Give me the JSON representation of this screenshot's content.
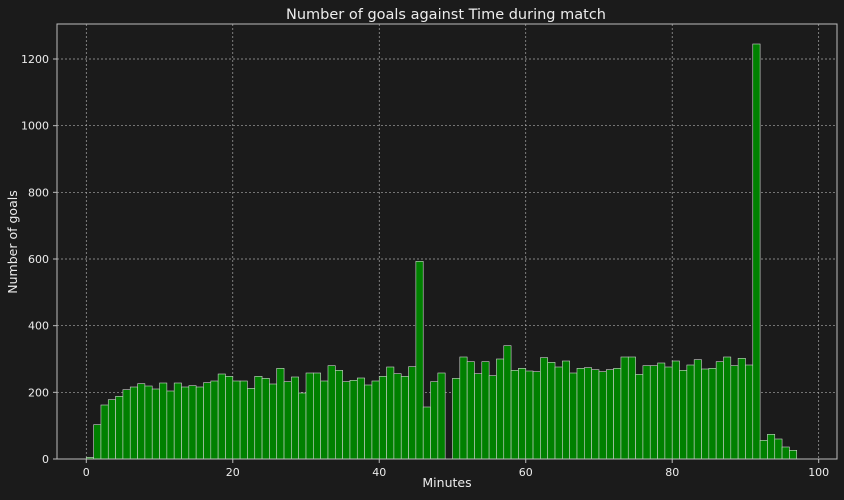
{
  "chart_data": {
    "type": "bar",
    "title": "Number of goals against Time during match",
    "xlabel": "Minutes",
    "ylabel": "Number of goals",
    "xlim": [
      -4,
      102.5
    ],
    "ylim": [
      0,
      1305
    ],
    "xticks": [
      0,
      20,
      40,
      60,
      80,
      100
    ],
    "yticks": [
      0,
      200,
      400,
      600,
      800,
      1000,
      1200
    ],
    "grid": true,
    "bar_color": "#008000",
    "bar_edge_color": "#d3d3d3",
    "x": [
      0,
      1,
      2,
      3,
      4,
      5,
      6,
      7,
      8,
      9,
      10,
      11,
      12,
      13,
      14,
      15,
      16,
      17,
      18,
      19,
      20,
      21,
      22,
      23,
      24,
      25,
      26,
      27,
      28,
      29,
      30,
      31,
      32,
      33,
      34,
      35,
      36,
      37,
      38,
      39,
      40,
      41,
      42,
      43,
      44,
      45,
      46,
      47,
      48,
      49,
      50,
      51,
      52,
      53,
      54,
      55,
      56,
      57,
      58,
      59,
      60,
      61,
      62,
      63,
      64,
      65,
      66,
      67,
      68,
      69,
      70,
      71,
      72,
      73,
      74,
      75,
      76,
      77,
      78,
      79,
      80,
      81,
      82,
      83,
      84,
      85,
      86,
      87,
      88,
      89,
      90,
      91,
      92,
      93,
      94,
      95,
      96
    ],
    "values": [
      5,
      103,
      162,
      178,
      188,
      208,
      216,
      226,
      219,
      210,
      228,
      204,
      228,
      216,
      220,
      216,
      229,
      234,
      255,
      248,
      234,
      234,
      212,
      248,
      242,
      225,
      272,
      232,
      246,
      198,
      258,
      258,
      234,
      280,
      266,
      232,
      236,
      243,
      222,
      234,
      248,
      276,
      256,
      248,
      277,
      593,
      156,
      232,
      258,
      0,
      242,
      306,
      292,
      256,
      292,
      250,
      300,
      340,
      266,
      272,
      264,
      262,
      304,
      290,
      276,
      294,
      258,
      272,
      274,
      268,
      262,
      268,
      272,
      306,
      306,
      254,
      280,
      280,
      288,
      276,
      294,
      266,
      282,
      298,
      270,
      272,
      292,
      306,
      280,
      302,
      282,
      1245,
      56,
      74,
      60,
      36,
      26
    ]
  }
}
